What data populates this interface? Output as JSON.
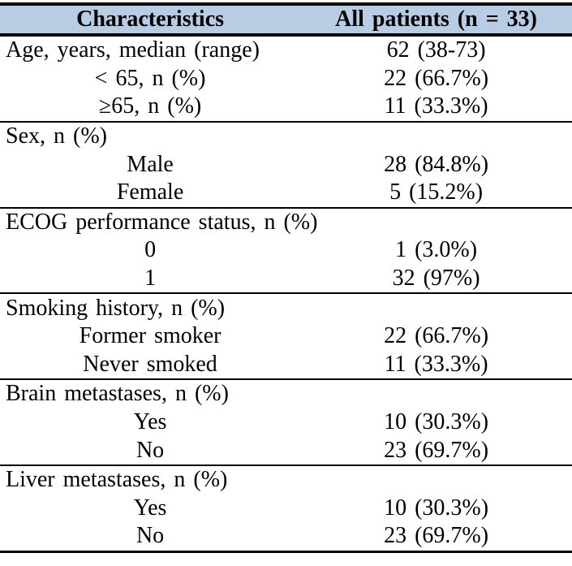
{
  "colors": {
    "header_bg": "#b8cce4",
    "border": "#000000"
  },
  "table": {
    "columns": [
      "Characteristics",
      "All patients (n = 33)"
    ],
    "sections": [
      {
        "rows": [
          {
            "label": "Age, years, median (range)",
            "value": "62 (38-73)",
            "indent": false
          },
          {
            "label": "< 65, n (%)",
            "value": "22 (66.7%)",
            "indent": true
          },
          {
            "label": "≥65, n (%)",
            "value": "11 (33.3%)",
            "indent": true
          }
        ]
      },
      {
        "rows": [
          {
            "label": "Sex, n (%)",
            "value": "",
            "indent": false
          },
          {
            "label": "Male",
            "value": "28 (84.8%)",
            "indent": true
          },
          {
            "label": "Female",
            "value": "5 (15.2%)",
            "indent": true
          }
        ]
      },
      {
        "rows": [
          {
            "label": "ECOG performance status, n (%)",
            "value": "",
            "indent": false
          },
          {
            "label": "0",
            "value": "1 (3.0%)",
            "indent": true
          },
          {
            "label": "1",
            "value": "32 (97%)",
            "indent": true
          }
        ]
      },
      {
        "rows": [
          {
            "label": "Smoking history, n (%)",
            "value": "",
            "indent": false
          },
          {
            "label": "Former smoker",
            "value": "22 (66.7%)",
            "indent": true
          },
          {
            "label": "Never smoked",
            "value": "11 (33.3%)",
            "indent": true
          }
        ]
      },
      {
        "rows": [
          {
            "label": "Brain metastases, n (%)",
            "value": "",
            "indent": false
          },
          {
            "label": "Yes",
            "value": "10 (30.3%)",
            "indent": true
          },
          {
            "label": "No",
            "value": "23 (69.7%)",
            "indent": true
          }
        ]
      },
      {
        "rows": [
          {
            "label": "Liver metastases, n (%)",
            "value": "",
            "indent": false
          },
          {
            "label": "Yes",
            "value": "10 (30.3%)",
            "indent": true
          },
          {
            "label": "No",
            "value": "23 (69.7%)",
            "indent": true
          }
        ]
      }
    ]
  }
}
